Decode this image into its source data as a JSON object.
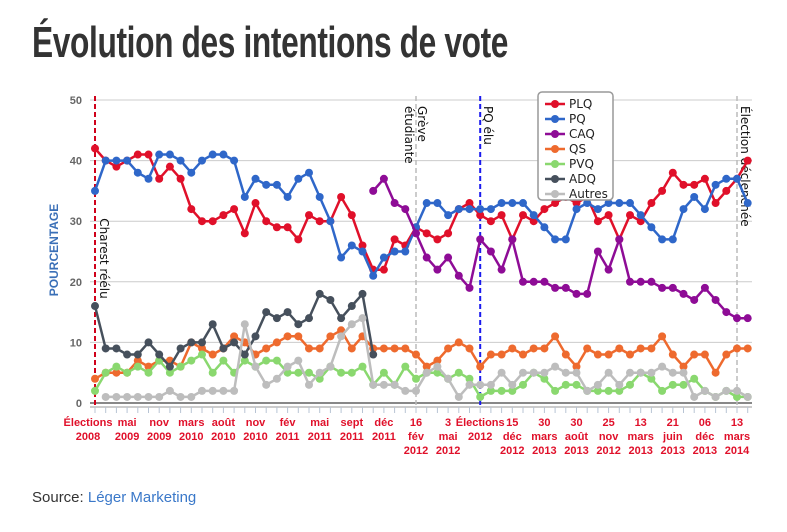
{
  "title": "Évolution des intentions de vote",
  "source": {
    "label": "Source:",
    "link": "Léger Marketing"
  },
  "chart_data": {
    "type": "line",
    "title": "Évolution des intentions de vote",
    "ylabel": "POURCENTAGE",
    "ylim": [
      0,
      50
    ],
    "yticks": [
      0,
      10,
      20,
      30,
      40,
      50
    ],
    "grid": true,
    "legend_position": "top-right",
    "xtick_labels": [
      {
        "index": 0,
        "lines": [
          "Élections",
          "2008"
        ]
      },
      {
        "index": 3,
        "lines": [
          "mai",
          "2009"
        ]
      },
      {
        "index": 6,
        "lines": [
          "nov",
          "2009"
        ]
      },
      {
        "index": 9,
        "lines": [
          "mars",
          "2010"
        ]
      },
      {
        "index": 12,
        "lines": [
          "août",
          "2010"
        ]
      },
      {
        "index": 15,
        "lines": [
          "nov",
          "2010"
        ]
      },
      {
        "index": 18,
        "lines": [
          "fév",
          "2011"
        ]
      },
      {
        "index": 21,
        "lines": [
          "mai",
          "2011"
        ]
      },
      {
        "index": 24,
        "lines": [
          "sept",
          "2011"
        ]
      },
      {
        "index": 27,
        "lines": [
          "déc",
          "2011"
        ]
      },
      {
        "index": 30,
        "lines": [
          "16",
          "fév",
          "2012"
        ]
      },
      {
        "index": 33,
        "lines": [
          "3",
          "mai",
          "2012"
        ]
      },
      {
        "index": 36,
        "lines": [
          "Élections",
          "2012"
        ]
      },
      {
        "index": 39,
        "lines": [
          "15",
          "déc",
          "2012"
        ]
      },
      {
        "index": 42,
        "lines": [
          "30",
          "mars",
          "2013"
        ]
      },
      {
        "index": 45,
        "lines": [
          "30",
          "août",
          "2013"
        ]
      },
      {
        "index": 48,
        "lines": [
          "25",
          "nov",
          "2012"
        ]
      },
      {
        "index": 51,
        "lines": [
          "13",
          "mars",
          "2013"
        ]
      },
      {
        "index": 54,
        "lines": [
          "21",
          "juin",
          "2013"
        ]
      },
      {
        "index": 57,
        "lines": [
          "06",
          "déc",
          "2013"
        ]
      },
      {
        "index": 60,
        "lines": [
          "13",
          "mars",
          "2014"
        ]
      }
    ],
    "annotations": [
      {
        "index": 0,
        "text": "Charest réélu",
        "color": "#d0021b",
        "line": "dashed"
      },
      {
        "index": 30,
        "text": "Grève étudiante",
        "color": "#bbbbbb",
        "line": "dashed"
      },
      {
        "index": 36,
        "text": "PQ élu",
        "color": "#1a1aee",
        "line": "dashed"
      },
      {
        "index": 60,
        "text": "Élection déclenchée",
        "color": "#bbbbbb",
        "line": "dashed"
      }
    ],
    "series": [
      {
        "name": "PLQ",
        "color": "#e0102a",
        "values": [
          42,
          40,
          39,
          40,
          41,
          41,
          37,
          39,
          37,
          32,
          30,
          30,
          31,
          32,
          28,
          33,
          30,
          29,
          29,
          27,
          31,
          30,
          30,
          34,
          31,
          26,
          22,
          22,
          27,
          26,
          29,
          28,
          27,
          28,
          32,
          33,
          31,
          30,
          31,
          27,
          31,
          30,
          32,
          33,
          34,
          33,
          34,
          30,
          31,
          27,
          31,
          30,
          33,
          35,
          38,
          36,
          36,
          37,
          33,
          35,
          37,
          40
        ]
      },
      {
        "name": "PQ",
        "color": "#2f67c9",
        "values": [
          35,
          40,
          40,
          40,
          38,
          37,
          41,
          41,
          40,
          38,
          40,
          41,
          41,
          40,
          34,
          37,
          36,
          36,
          34,
          37,
          38,
          34,
          30,
          24,
          26,
          25,
          21,
          24,
          25,
          25,
          29,
          33,
          33,
          31,
          32,
          32,
          32,
          32,
          33,
          33,
          33,
          31,
          29,
          27,
          27,
          32,
          33,
          32,
          33,
          33,
          33,
          31,
          29,
          27,
          27,
          32,
          34,
          32,
          36,
          37,
          37,
          33
        ]
      },
      {
        "name": "CAQ",
        "color": "#8e0c96",
        "values": [
          null,
          null,
          null,
          null,
          null,
          null,
          null,
          null,
          null,
          null,
          null,
          null,
          null,
          null,
          null,
          null,
          null,
          null,
          null,
          null,
          null,
          null,
          null,
          null,
          null,
          null,
          35,
          37,
          33,
          32,
          28,
          24,
          22,
          24,
          21,
          19,
          27,
          25,
          22,
          27,
          20,
          20,
          20,
          19,
          19,
          18,
          18,
          25,
          22,
          27,
          20,
          20,
          20,
          19,
          19,
          18,
          17,
          19,
          17,
          15,
          14,
          14
        ]
      },
      {
        "name": "QS",
        "color": "#ee6a2e",
        "values": [
          4,
          5,
          5,
          5,
          7,
          6,
          7,
          7,
          6,
          10,
          9,
          8,
          9,
          11,
          10,
          8,
          9,
          10,
          11,
          11,
          9,
          9,
          11,
          12,
          9,
          11,
          9,
          9,
          9,
          9,
          8,
          6,
          7,
          9,
          10,
          9,
          6,
          8,
          8,
          9,
          8,
          9,
          9,
          11,
          8,
          6,
          9,
          8,
          8,
          9,
          8,
          9,
          9,
          11,
          8,
          6,
          8,
          8,
          5,
          8,
          9,
          9
        ]
      },
      {
        "name": "PVQ",
        "color": "#8ad86f",
        "values": [
          2,
          5,
          6,
          5,
          6,
          5,
          7,
          5,
          6,
          7,
          8,
          5,
          7,
          5,
          7,
          6,
          7,
          7,
          5,
          5,
          5,
          4,
          6,
          5,
          5,
          6,
          3,
          5,
          3,
          6,
          4,
          5,
          5,
          4,
          5,
          4,
          1,
          2,
          2,
          2,
          3,
          5,
          4,
          2,
          3,
          3,
          2,
          2,
          2,
          2,
          3,
          5,
          4,
          2,
          3,
          3,
          4,
          2,
          1,
          2,
          1,
          1
        ]
      },
      {
        "name": "ADQ",
        "color": "#46505c",
        "values": [
          16,
          9,
          9,
          8,
          8,
          10,
          8,
          6,
          9,
          10,
          10,
          13,
          9,
          10,
          8,
          11,
          15,
          14,
          15,
          13,
          14,
          18,
          17,
          14,
          16,
          18,
          8
        ]
      },
      {
        "name": "Autres",
        "color": "#bdbdbd",
        "values": [
          null,
          1,
          1,
          1,
          1,
          1,
          1,
          2,
          1,
          1,
          2,
          2,
          2,
          2,
          13,
          6,
          3,
          4,
          6,
          7,
          3,
          5,
          6,
          11,
          13,
          14,
          3,
          3,
          3,
          2,
          2,
          5,
          6,
          4,
          1,
          3,
          3,
          3,
          5,
          3,
          5,
          5,
          5,
          6,
          5,
          5,
          2,
          3,
          5,
          3,
          5,
          5,
          5,
          6,
          5,
          5,
          1,
          2,
          1,
          2,
          2,
          1
        ]
      }
    ]
  }
}
